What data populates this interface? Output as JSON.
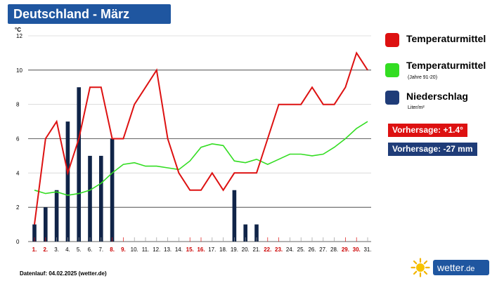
{
  "title": "Deutschland - März",
  "chart_data": {
    "type": "line",
    "unit_label": "°C",
    "ylim": [
      0,
      12
    ],
    "yticks": [
      0,
      2,
      4,
      6,
      8,
      10,
      12
    ],
    "categories": [
      "1.",
      "2.",
      "3.",
      "4.",
      "5.",
      "6.",
      "7.",
      "8.",
      "9.",
      "10.",
      "11.",
      "12.",
      "13.",
      "14.",
      "15.",
      "16.",
      "17.",
      "18.",
      "19.",
      "20.",
      "21.",
      "22.",
      "23.",
      "24.",
      "25.",
      "26.",
      "27.",
      "28.",
      "29.",
      "30.",
      "31."
    ],
    "highlighted_days": [
      "1.",
      "2.",
      "8.",
      "9.",
      "15.",
      "16.",
      "22.",
      "23.",
      "29.",
      "30."
    ],
    "series": [
      {
        "name": "Temperaturmittel",
        "color": "#dd1111",
        "kind": "line",
        "values": [
          1,
          6,
          7,
          4,
          6,
          9,
          9,
          6,
          6,
          8,
          9,
          10,
          6,
          4,
          3,
          3,
          4,
          3,
          4,
          4,
          4,
          6,
          8,
          8,
          8,
          9,
          8,
          8,
          9,
          11,
          10
        ]
      },
      {
        "name": "Temperaturmittel",
        "note": "(Jahre 91-20)",
        "color": "#33dd22",
        "kind": "line",
        "values": [
          3.0,
          2.8,
          2.9,
          2.7,
          2.8,
          3.0,
          3.4,
          4.0,
          4.5,
          4.6,
          4.4,
          4.4,
          4.3,
          4.2,
          4.7,
          5.5,
          5.7,
          5.6,
          4.7,
          4.6,
          4.8,
          4.5,
          4.8,
          5.1,
          5.1,
          5.0,
          5.1,
          5.5,
          6.0,
          6.6,
          7.0
        ]
      },
      {
        "name": "Niederschlag",
        "note": "Liter/m²",
        "color": "#102448",
        "kind": "bar",
        "values": [
          1,
          2,
          3,
          7,
          9,
          5,
          5,
          6,
          0,
          0,
          0,
          0,
          0,
          0,
          0,
          0,
          0,
          0,
          3,
          1,
          1,
          0,
          0,
          0,
          0,
          0,
          0,
          0,
          0,
          0,
          0
        ]
      }
    ]
  },
  "legend": {
    "temp": "Temperaturmittel",
    "normal": "Temperaturmittel",
    "normal_sub": "(Jahre 91-20)",
    "precip": "Niederschlag",
    "precip_sub": "Liter/m²",
    "temp_color": "#dd1111",
    "normal_color": "#33dd22",
    "precip_color": "#1f3c78"
  },
  "forecast": {
    "temp": "Vorhersage: +1.4°",
    "precip": "Vorhersage: -27 mm"
  },
  "footer": "Datenlauf: 04.02.2025 (wetter.de)",
  "logo": {
    "name": "wetter",
    "tld": ".de"
  }
}
